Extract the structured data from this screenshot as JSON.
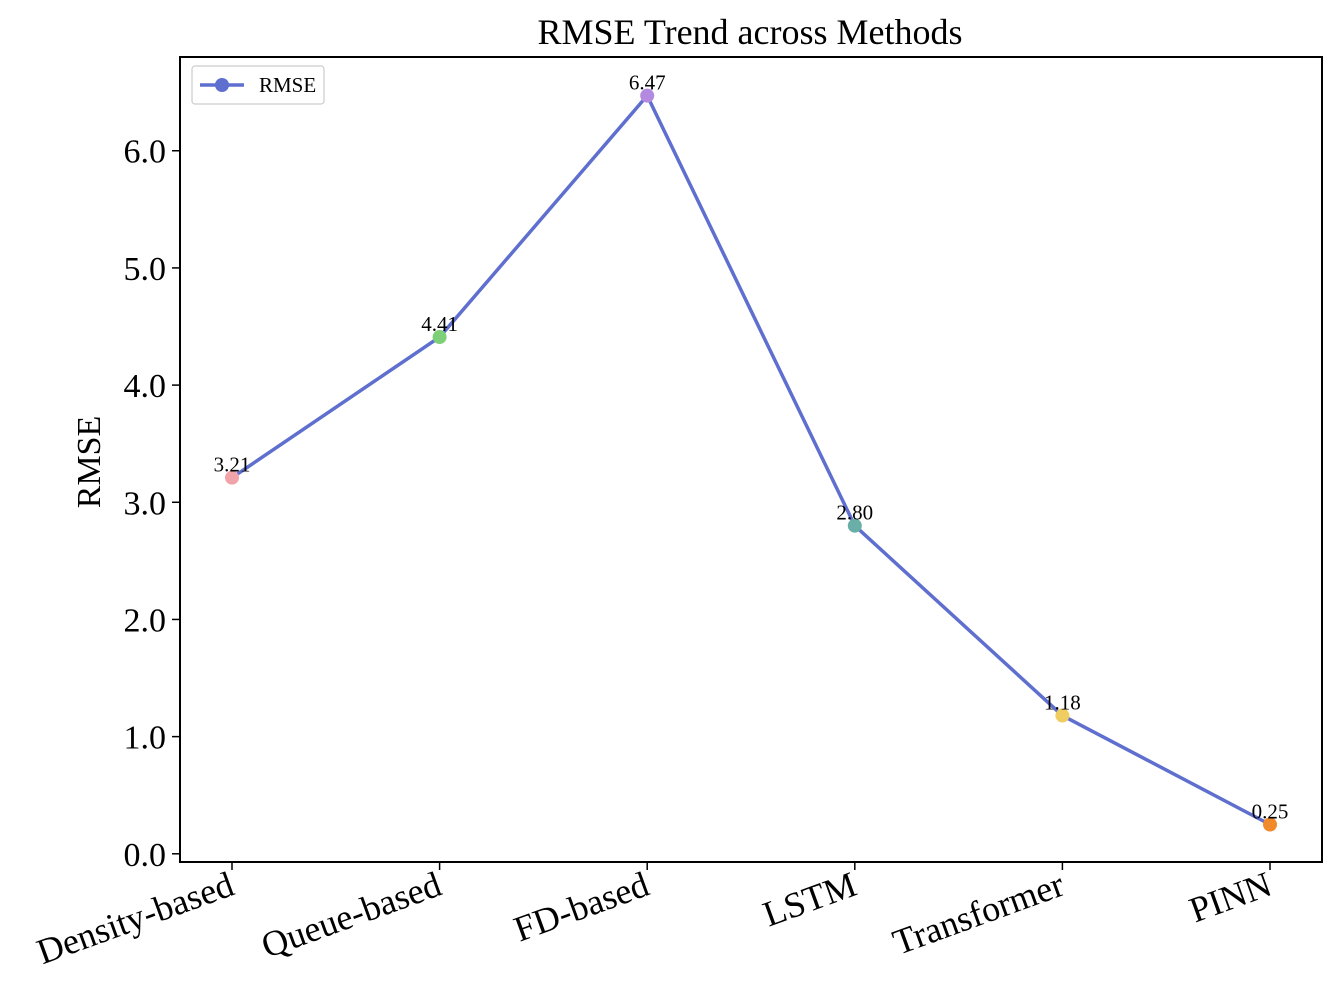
{
  "chart_data": {
    "type": "line",
    "title": "RMSE Trend across Methods",
    "xlabel": "",
    "ylabel": "RMSE",
    "categories": [
      "Density-based",
      "Queue-based",
      "FD-based",
      "LSTM",
      "Transformer",
      "PINN"
    ],
    "series": [
      {
        "name": "RMSE",
        "values": [
          3.21,
          4.41,
          6.47,
          2.8,
          1.18,
          0.25
        ],
        "data_labels": [
          "3.21",
          "4.41",
          "6.47",
          "2.80",
          "1.18",
          "0.25"
        ],
        "line_color": "#5f6fcf",
        "marker_colors": [
          "#f0a3a8",
          "#7dcf78",
          "#b48ae0",
          "#6aaea8",
          "#f0cd60",
          "#f08a2a"
        ]
      }
    ],
    "yticks": [
      0.0,
      1.0,
      2.0,
      3.0,
      4.0,
      5.0,
      6.0
    ],
    "ytick_labels": [
      "0.0",
      "1.0",
      "2.0",
      "3.0",
      "4.0",
      "5.0",
      "6.0"
    ],
    "ylim": [
      -0.07,
      6.8
    ],
    "legend": {
      "position": "top-left",
      "entries": [
        "RMSE"
      ]
    },
    "grid": false
  }
}
